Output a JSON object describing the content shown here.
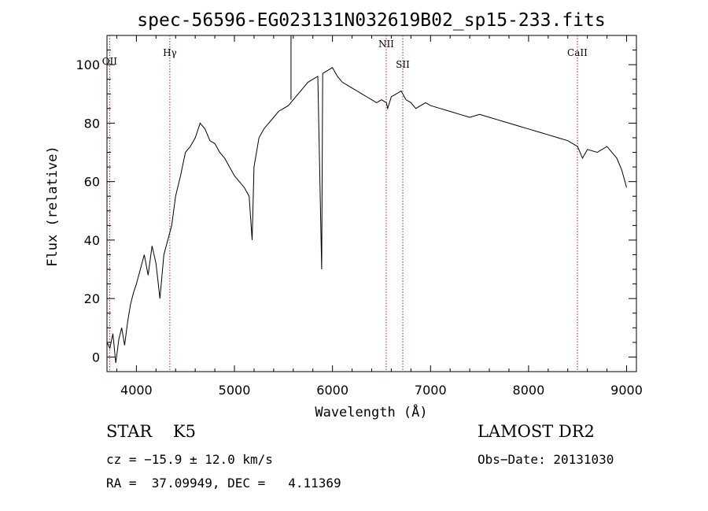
{
  "chart_data": {
    "type": "line",
    "title": "spec-56596-EG023131N032619B02_sp15-233.fits",
    "xlabel": "Wavelength (Å)",
    "ylabel": "Flux (relative)",
    "xlim": [
      3700,
      9100
    ],
    "ylim": [
      -5,
      110
    ],
    "xticks": [
      4000,
      5000,
      6000,
      7000,
      8000,
      9000
    ],
    "yticks": [
      0,
      20,
      40,
      60,
      80,
      100
    ],
    "tick_labels": {
      "x": [
        "4000",
        "5000",
        "6000",
        "7000",
        "8000",
        "9000"
      ],
      "y": [
        "0",
        "20",
        "40",
        "60",
        "80",
        "100"
      ]
    },
    "line_color": "#000000",
    "marker_color": "#b22222",
    "series": [
      {
        "x": [
          3700,
          3730,
          3760,
          3790,
          3820,
          3850,
          3880,
          3910,
          3940,
          3970,
          4000,
          4040,
          4080,
          4120,
          4160,
          4200,
          4240,
          4280,
          4320,
          4360,
          4400,
          4450,
          4500,
          4550,
          4600,
          4650,
          4700,
          4750,
          4800,
          4850,
          4900,
          4950,
          5000,
          5050,
          5100,
          5150,
          5180,
          5200,
          5250,
          5300,
          5350,
          5400,
          5450,
          5500,
          5550,
          5600,
          5650,
          5700,
          5750,
          5800,
          5850,
          5890,
          5900,
          5950,
          6000,
          6050,
          6100,
          6150,
          6200,
          6250,
          6300,
          6350,
          6400,
          6450,
          6500,
          6550,
          6563,
          6600,
          6650,
          6700,
          6750,
          6800,
          6850,
          6900,
          6950,
          7000,
          7100,
          7200,
          7300,
          7400,
          7500,
          7600,
          7700,
          7800,
          7900,
          8000,
          8100,
          8200,
          8300,
          8400,
          8500,
          8550,
          8600,
          8700,
          8800,
          8900,
          8950,
          9000
        ],
        "y": [
          5,
          3,
          8,
          -2,
          6,
          10,
          4,
          12,
          18,
          22,
          25,
          30,
          35,
          28,
          38,
          32,
          20,
          35,
          40,
          45,
          55,
          62,
          70,
          72,
          75,
          80,
          78,
          74,
          73,
          70,
          68,
          65,
          62,
          60,
          58,
          55,
          40,
          65,
          75,
          78,
          80,
          82,
          84,
          85,
          86,
          88,
          90,
          92,
          94,
          95,
          96,
          30,
          97,
          98,
          99,
          96,
          94,
          93,
          92,
          91,
          90,
          89,
          88,
          87,
          88,
          87,
          85,
          89,
          90,
          91,
          88,
          87,
          85,
          86,
          87,
          86,
          85,
          84,
          83,
          82,
          83,
          82,
          81,
          80,
          79,
          78,
          77,
          76,
          75,
          74,
          72,
          68,
          71,
          70,
          72,
          68,
          64,
          58
        ]
      }
    ],
    "spike": {
      "x": 5577,
      "y_from": 88,
      "y_to": 110
    },
    "line_markers": [
      {
        "label": "OII",
        "x": 3727,
        "label_y": 100
      },
      {
        "label": "Hγ",
        "x": 4341,
        "label_y": 103
      },
      {
        "label": "NII",
        "x": 6548,
        "label_y": 106
      },
      {
        "label": "SII",
        "x": 6717,
        "label_y": 99
      },
      {
        "label": "CaII",
        "x": 8498,
        "label_y": 103
      }
    ]
  },
  "info": {
    "class_line": "STAR    K5",
    "release": "LAMOST DR2",
    "cz_line": "cz = −15.9 ± 12.0 km/s",
    "obs_date": "Obs−Date: 20131030",
    "coords": "RA =  37.09949, DEC =   4.11369"
  }
}
